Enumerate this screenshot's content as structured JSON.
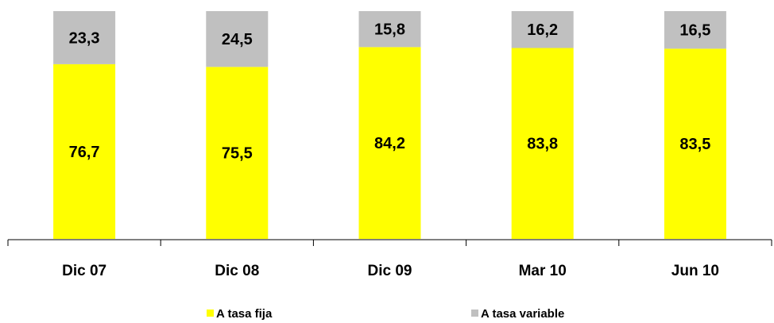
{
  "chart_data": {
    "type": "bar",
    "stacked": true,
    "percent_stacked": true,
    "categories": [
      "Dic 07",
      "Dic 08",
      "Dic 09",
      "Mar 10",
      "Jun 10"
    ],
    "series": [
      {
        "name": "A tasa fija",
        "color": "#ffff00",
        "values": [
          76.7,
          75.5,
          84.2,
          83.8,
          83.5
        ],
        "labels": [
          "76,7",
          "75,5",
          "84,2",
          "83,8",
          "83,5"
        ]
      },
      {
        "name": "A tasa variable",
        "color": "#c0c0c0",
        "values": [
          23.3,
          24.5,
          15.8,
          16.2,
          16.5
        ],
        "labels": [
          "23,3",
          "24,5",
          "15,8",
          "16,2",
          "16,5"
        ]
      }
    ],
    "ylim": [
      0,
      100
    ],
    "grid": false,
    "legend_position": "bottom",
    "title": "",
    "xlabel": "",
    "ylabel": ""
  }
}
